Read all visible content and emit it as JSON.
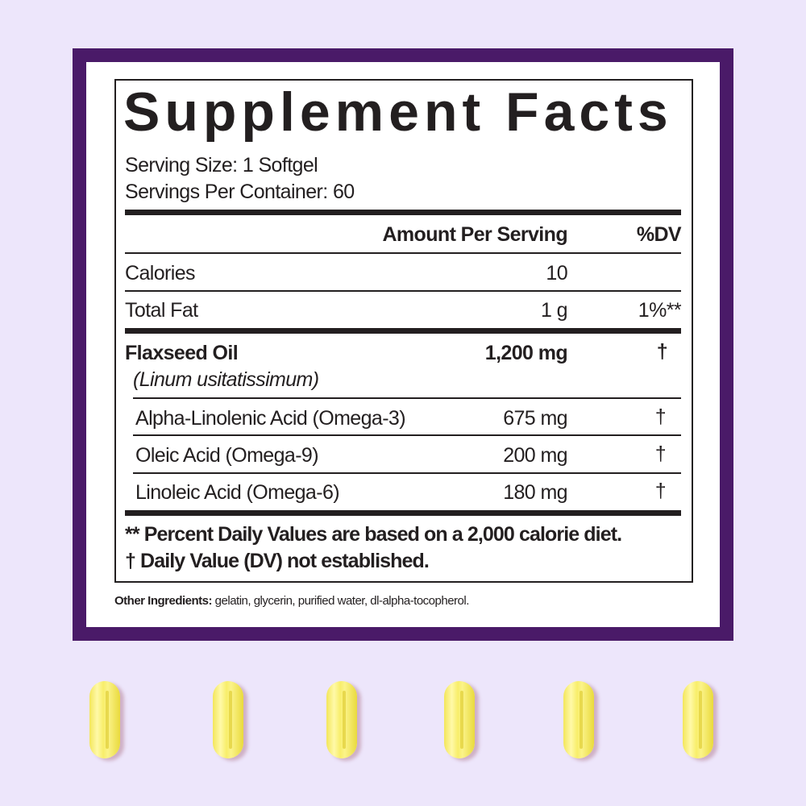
{
  "colors": {
    "background": "#ede6fb",
    "frame": "#4a1a68",
    "text": "#231f20",
    "capsule": "#f8ee6a"
  },
  "title": "Supplement Facts",
  "serving_size": "Serving Size: 1 Softgel",
  "servings_per_container": "Servings Per Container: 60",
  "headers": {
    "amount": "Amount Per Serving",
    "dv": "%DV"
  },
  "rows": [
    {
      "name": "Calories",
      "amount": "10",
      "dv": ""
    },
    {
      "name": "Total Fat",
      "amount": "1 g",
      "dv": "1%**"
    },
    {
      "name": "Flaxseed Oil",
      "sub": "(Linum usitatissimum)",
      "amount": "1,200 mg",
      "dv": "†"
    },
    {
      "name": "Alpha-Linolenic Acid (Omega-3)",
      "amount": "675 mg",
      "dv": "†"
    },
    {
      "name": "Oleic Acid (Omega-9)",
      "amount": "200 mg",
      "dv": "†"
    },
    {
      "name": "Linoleic Acid (Omega-6)",
      "amount": "180 mg",
      "dv": "†"
    }
  ],
  "footnotes": [
    "** Percent Daily Values are based on a 2,000 calorie diet.",
    "† Daily Value (DV) not established."
  ],
  "other_ingredients": {
    "label": "Other Ingredients:",
    "text": " gelatin, glycerin, purified water, dl-alpha-tocopherol."
  },
  "capsules": {
    "count": 6,
    "icon": "softgel-capsule"
  }
}
